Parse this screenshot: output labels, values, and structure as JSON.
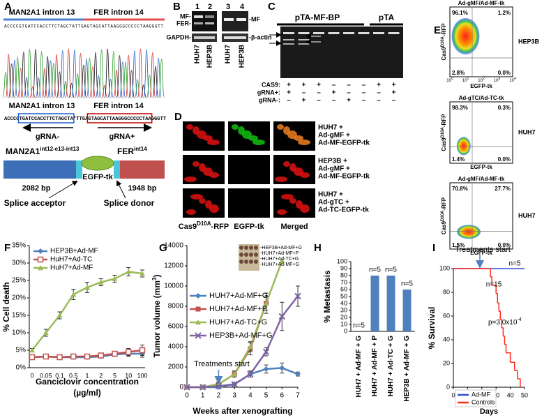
{
  "panel_labels": [
    "A",
    "B",
    "C",
    "D",
    "E",
    "F",
    "G",
    "H",
    "I"
  ],
  "panel_a": {
    "top_left": "MAN2A1 intron 13",
    "top_right": "FER intron 14",
    "sequence_top": "ACCCCGTGATCCACCTTCTAGCTATTGAGTAGCATTAAGGGCCCCCTAAGGGTT",
    "left": "MAN2A1 intron 13",
    "right": "FER intron 14",
    "seq_parts": [
      "ACCCG",
      "TGATCCACCTTCTAGCTA",
      "*TTGA",
      "GTAGCATTAAGGGCCCCCTAA",
      "GGGTT"
    ],
    "grna_minus": "gRNA-",
    "grna_plus": "gRNA+",
    "construct_left": [
      "MAN2A1",
      "int12-e13-int13"
    ],
    "construct_right": [
      "FER",
      "int14"
    ],
    "left_bp": "2082 bp",
    "insert": "EGFP-tk",
    "right_bp": "1948 bp",
    "acceptor": "Splice acceptor",
    "donor": "Splice donor"
  },
  "panel_b": {
    "lanes": [
      "1",
      "2",
      "3",
      "4"
    ],
    "left_labels": [
      "MF-",
      "FER-",
      "GAPDH-"
    ],
    "right_labels": [
      "-MF",
      "-β-actin"
    ],
    "cells": [
      "HUH7",
      "HEP3B",
      "HUH7",
      "HEP3B"
    ]
  },
  "panel_c": {
    "group1": "pTA-MF-BP",
    "group2": "pTA",
    "rows": [
      {
        "label": "CAS9:",
        "marks": [
          "+",
          "+",
          "+",
          "–",
          "–",
          "–",
          "+",
          "+"
        ]
      },
      {
        "label": "gRNA+:",
        "marks": [
          "+",
          "–",
          "–",
          "+",
          "–",
          "–",
          "–",
          "+"
        ]
      },
      {
        "label": "gRNA-:",
        "marks": [
          "–",
          "+",
          "–",
          "–",
          "+",
          "–",
          "–",
          "–"
        ]
      }
    ]
  },
  "panel_d": {
    "rows": [
      [
        "HUH7 +",
        "Ad-gMF +",
        "Ad-MF-EGFP-tk"
      ],
      [
        "HEP3B  +",
        "Ad-gMF +",
        "Ad-MF-EGFP-tk"
      ],
      [
        "HUH7 +",
        "Ad-gTC +",
        "Ad-TC-EGFP-tk"
      ]
    ],
    "col1": [
      "Cas9",
      "D10A",
      "-RFP"
    ],
    "col2": "EGFP-tk",
    "col3": "Merged"
  },
  "panel_e": {
    "ylabel": [
      "Cas9",
      "D10A",
      "-RFP"
    ],
    "xlabel": "EGFP-tk",
    "tick_base": "10",
    "tick_exps": [
      "0",
      "1",
      "2",
      "3",
      "4"
    ],
    "plots": [
      {
        "title": "Ad-gMF/Ad-MF-tk",
        "cell": "HEP3B",
        "quadrants": [
          "96.1%",
          "1.2%",
          "2.8%",
          "0.0%"
        ]
      },
      {
        "title": "Ad-gTC/Ad-TC-tk",
        "cell": "HUH7",
        "quadrants": [
          "98.3%",
          "0.3%",
          "1.4%",
          "0.0%"
        ]
      },
      {
        "title": "Ad-gMF/Ad-MF-tk",
        "cell": "HUH7",
        "quadrants": [
          "70.8%",
          "27.7%",
          "1.5%",
          "0.0%"
        ]
      }
    ]
  },
  "chart_data": [
    {
      "type": "line",
      "ylabel": "% Cell death",
      "xlabel": "Ganciclovir concentration",
      "xlabel2": "(µg/ml)",
      "categories": [
        "0",
        "0.05",
        "0.1",
        "0.5",
        "1",
        "2",
        "5",
        "10",
        "100"
      ],
      "ylim": [
        0,
        35
      ],
      "yticks": [
        {
          "value": 0,
          "label": "0%"
        },
        {
          "value": 5,
          "label": "5%"
        },
        {
          "value": 10,
          "label": "10%"
        },
        {
          "value": 15,
          "label": "15%"
        },
        {
          "value": 20,
          "label": "20%"
        },
        {
          "value": 25,
          "label": "25%"
        },
        {
          "value": 30,
          "label": "30%"
        },
        {
          "value": 35,
          "label": "35%"
        }
      ],
      "legend": "upper left",
      "series": [
        {
          "name": "HEP3B+Ad-MF",
          "color": "#4f81bd",
          "marker": "diamond",
          "values": [
            3,
            3.2,
            3,
            3,
            3,
            3.2,
            3.8,
            4,
            4
          ],
          "errors": [
            0.3,
            0.3,
            0.3,
            0.3,
            0.3,
            0.4,
            0.5,
            0.8,
            1
          ]
        },
        {
          "name": "HuH7+Ad-TC",
          "color": "#c0504d",
          "marker": "square-open",
          "values": [
            3,
            3.2,
            3,
            3.2,
            3.2,
            3.5,
            4,
            4.5,
            5
          ],
          "errors": [
            0.3,
            0.3,
            0.3,
            0.3,
            0.3,
            0.4,
            0.5,
            1,
            1.5
          ]
        },
        {
          "name": "HuH7+Ad-MF",
          "color": "#9bbb59",
          "marker": "triangle",
          "values": [
            5,
            10,
            15,
            21,
            23,
            24.5,
            25.5,
            27.5,
            27
          ],
          "errors": [
            0.5,
            1,
            1,
            1.5,
            1.5,
            1,
            1,
            1.2,
            1
          ]
        }
      ]
    },
    {
      "type": "line",
      "ylabel": [
        "Tumor volume (mm",
        "3",
        ")"
      ],
      "xlabel": "Weeks after xenografting",
      "x": [
        0,
        1,
        2,
        3,
        4,
        5,
        6,
        7
      ],
      "xlim": [
        0,
        7
      ],
      "xticks": [
        0,
        1,
        2,
        3,
        4,
        5,
        6,
        7
      ],
      "ylim": [
        0,
        14000
      ],
      "yticks": [
        0,
        2000,
        4000,
        6000,
        8000,
        10000,
        12000,
        14000
      ],
      "annotation": "Treatments start",
      "inset_labels": [
        "-HEP3B+Ad-MF+G",
        "-HUH7+Ad-MF+P",
        "-HUH7+Ad-TC+G",
        "-HUH7+Ad-MF+G"
      ],
      "legend": "upper left",
      "series": [
        {
          "name": "HUH7+Ad-MF+G",
          "color": "#4f81bd",
          "marker": "diamond",
          "values": [
            0,
            0,
            0,
            300,
            1300,
            1800,
            1900,
            1300
          ],
          "errors": [
            0,
            0,
            0,
            100,
            300,
            400,
            500,
            200
          ]
        },
        {
          "name": "HUH7+Ad-MF+P",
          "color": "#c0504d",
          "marker": "square",
          "values": [
            0,
            0,
            300,
            1300,
            3800,
            8300,
            null,
            null
          ],
          "errors": [
            0,
            0,
            100,
            300,
            600,
            1000,
            null,
            null
          ]
        },
        {
          "name": "HUH7+Ad-TC+G",
          "color": "#9bbb59",
          "marker": "triangle",
          "values": [
            0,
            0,
            300,
            1300,
            4000,
            8300,
            12500,
            null
          ],
          "errors": [
            0,
            0,
            100,
            300,
            500,
            700,
            0,
            null
          ]
        },
        {
          "name": "HEP3B+Ad-MF+G",
          "color": "#8064a2",
          "marker": "x",
          "values": [
            0,
            0,
            100,
            300,
            1300,
            3500,
            7000,
            9000
          ],
          "errors": [
            0,
            0,
            50,
            100,
            300,
            400,
            1400,
            1000
          ]
        }
      ]
    },
    {
      "type": "bar",
      "ylabel": "% Metastasis",
      "categories": [
        "HUH7 + Ad-MF + G",
        "HUH7 + Ad-MF + P",
        "HUH7 + Ad-TC + G",
        "HEP3B + Ad-MF + G"
      ],
      "values": [
        0,
        80,
        80,
        60
      ],
      "annotations": [
        "n=5",
        "n=5",
        "n=5",
        "n=5"
      ],
      "color": "#4f81bd",
      "ylim": [
        0,
        100
      ],
      "yticks": [
        0,
        10,
        20,
        30,
        40,
        50,
        60,
        70,
        80,
        90,
        100
      ]
    },
    {
      "type": "step",
      "ylabel": "% Survival",
      "xlabel": "Days",
      "xlim": [
        0,
        50
      ],
      "xticks": [
        0,
        10,
        20,
        30,
        40,
        50
      ],
      "ylim": [
        0,
        100
      ],
      "yticks": [
        0,
        20,
        40,
        60,
        80,
        100
      ],
      "annotation": "Treatments start",
      "n_top": "n=5",
      "n_bottom": "n=15",
      "p_text": "p=3.0x10",
      "p_exp": "-4",
      "legend": "lower left",
      "series": [
        {
          "name": "Ad-MF",
          "color": "#2e4fd6",
          "x": [
            0,
            50
          ],
          "values": [
            100,
            100
          ]
        },
        {
          "name": "Controls",
          "color": "#ff2a1a",
          "x": [
            0,
            26,
            27,
            30,
            31,
            32,
            33,
            34,
            35,
            36,
            37,
            40,
            43,
            45,
            47
          ],
          "values": [
            100,
            93,
            86,
            79,
            71,
            64,
            57,
            50,
            43,
            36,
            29,
            21,
            14,
            7,
            0
          ]
        }
      ]
    }
  ]
}
